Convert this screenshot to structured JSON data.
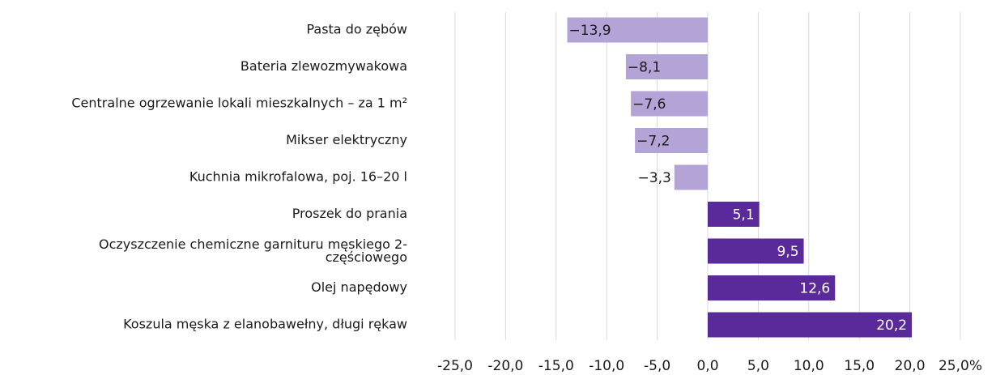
{
  "chart_data": {
    "type": "bar",
    "orientation": "horizontal",
    "categories": [
      "Pasta do zębów",
      "Bateria zlewozmywakowa",
      "Centralne ogrzewanie lokali mieszkalnych – za 1 m²",
      "Mikser elektryczny",
      "Kuchnia mikrofalowa, poj. 16–20 l",
      "Proszek do prania",
      "Oczyszczenie chemiczne garnituru męskiego 2-\nczęściowego",
      "Olej napędowy",
      "Koszula męska z elanobawełny, długi rękaw"
    ],
    "values": [
      -13.9,
      -8.1,
      -7.6,
      -7.2,
      -3.3,
      5.1,
      9.5,
      12.6,
      20.2
    ],
    "value_labels": [
      "−13,9",
      "−8,1",
      "−7,6",
      "−7,2",
      "−3,3",
      "5,1",
      "9,5",
      "12,6",
      "20,2"
    ],
    "colors": [
      "#b3a3d6",
      "#b3a3d6",
      "#b3a3d6",
      "#b3a3d6",
      "#b3a3d6",
      "#5b2a9a",
      "#5b2a9a",
      "#5b2a9a",
      "#5b2a9a"
    ],
    "xlim": [
      -25,
      25
    ],
    "xticks": [
      {
        "value": -25,
        "label": "-25,0"
      },
      {
        "value": -20,
        "label": "-20,0"
      },
      {
        "value": -15,
        "label": "-15,0"
      },
      {
        "value": -10,
        "label": "-10,0"
      },
      {
        "value": -5,
        "label": "-5,0"
      },
      {
        "value": 0,
        "label": "0,0"
      },
      {
        "value": 5,
        "label": "5,0"
      },
      {
        "value": 10,
        "label": "10,0"
      },
      {
        "value": 15,
        "label": "15,0"
      },
      {
        "value": 20,
        "label": "20,0"
      },
      {
        "value": 25,
        "label": "25,0%"
      }
    ],
    "grid": true
  }
}
